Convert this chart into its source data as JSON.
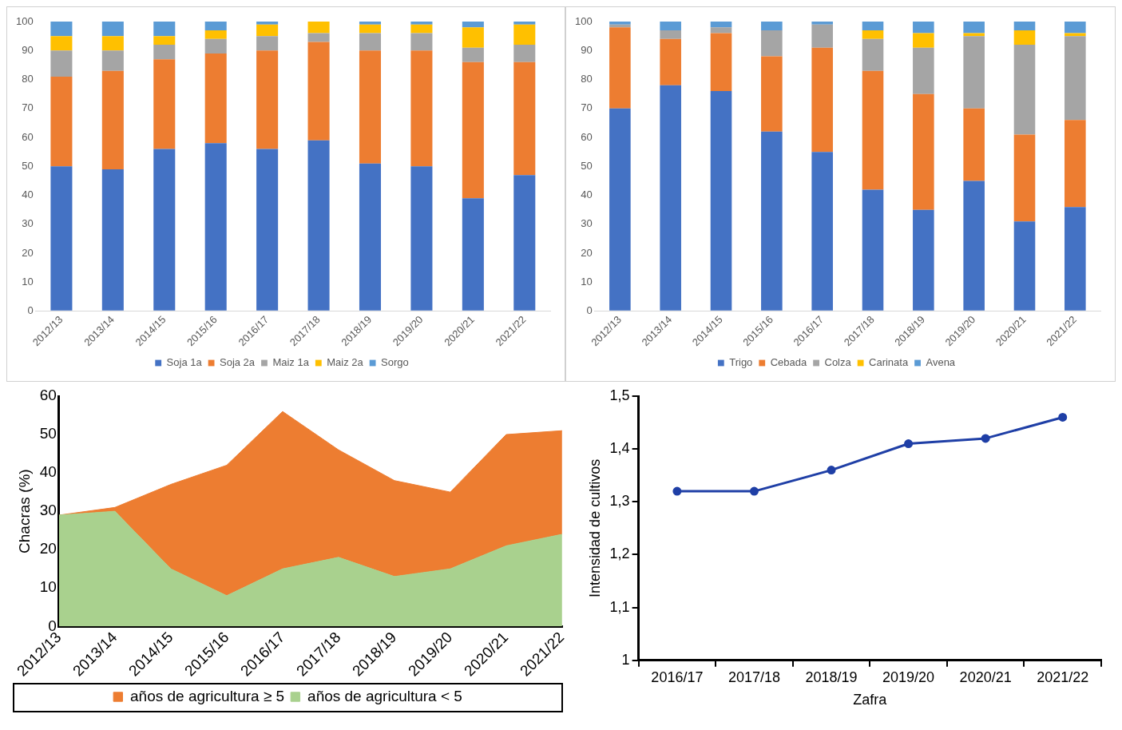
{
  "chart_data": [
    {
      "type": "bar",
      "stacked": true,
      "legend": "bottom",
      "ylim": [
        0,
        100
      ],
      "yticks": [
        0,
        10,
        20,
        30,
        40,
        50,
        60,
        70,
        80,
        90,
        100
      ],
      "categories": [
        "2012/13",
        "2013/14",
        "2014/15",
        "2015/16",
        "2016/17",
        "2017/18",
        "2018/19",
        "2019/20",
        "2020/21",
        "2021/22"
      ],
      "series": [
        {
          "name": "Soja 1a",
          "color": "#4472c4",
          "values": [
            50,
            49,
            56,
            58,
            56,
            59,
            51,
            50,
            39,
            47
          ]
        },
        {
          "name": "Soja 2a",
          "color": "#ed7d31",
          "values": [
            31,
            34,
            31,
            31,
            34,
            34,
            39,
            40,
            47,
            39
          ]
        },
        {
          "name": "Maiz 1a",
          "color": "#a5a5a5",
          "values": [
            9,
            7,
            5,
            5,
            5,
            3,
            6,
            6,
            5,
            6
          ]
        },
        {
          "name": "Maiz 2a",
          "color": "#ffc000",
          "values": [
            5,
            5,
            3,
            3,
            4,
            4,
            3,
            3,
            7,
            7
          ]
        },
        {
          "name": "Sorgo",
          "color": "#5b9bd5",
          "values": [
            5,
            5,
            5,
            3,
            1,
            0,
            1,
            1,
            2,
            1
          ]
        }
      ]
    },
    {
      "type": "bar",
      "stacked": true,
      "legend": "bottom",
      "ylim": [
        0,
        100
      ],
      "yticks": [
        0,
        10,
        20,
        30,
        40,
        50,
        60,
        70,
        80,
        90,
        100
      ],
      "categories": [
        "2012/13",
        "2013/14",
        "2014/15",
        "2015/16",
        "2016/17",
        "2017/18",
        "2018/19",
        "2019/20",
        "2020/21",
        "2021/22"
      ],
      "series": [
        {
          "name": "Trigo",
          "color": "#4472c4",
          "values": [
            70,
            78,
            76,
            62,
            55,
            42,
            35,
            45,
            31,
            36
          ]
        },
        {
          "name": "Cebada",
          "color": "#ed7d31",
          "values": [
            28,
            16,
            20,
            26,
            36,
            41,
            40,
            25,
            30,
            30
          ]
        },
        {
          "name": "Colza",
          "color": "#a5a5a5",
          "values": [
            1,
            3,
            2,
            9,
            8,
            11,
            16,
            25,
            31,
            29
          ]
        },
        {
          "name": "Carinata",
          "color": "#ffc000",
          "values": [
            0,
            0,
            0,
            0,
            0,
            3,
            5,
            1,
            5,
            1
          ]
        },
        {
          "name": "Avena",
          "color": "#5b9bd5",
          "values": [
            1,
            3,
            2,
            3,
            1,
            3,
            4,
            4,
            3,
            4
          ]
        }
      ]
    },
    {
      "type": "area",
      "stacked": true,
      "legend": "bottom",
      "ylabel": "Chacras (%)",
      "ylim": [
        0,
        60
      ],
      "yticks": [
        0,
        10,
        20,
        30,
        40,
        50,
        60
      ],
      "categories": [
        "2012/13",
        "2013/14",
        "2014/15",
        "2015/16",
        "2016/17",
        "2017/18",
        "2018/19",
        "2019/20",
        "2020/21",
        "2021/22"
      ],
      "series": [
        {
          "name": "años de agricultura < 5",
          "color": "#a9d18e",
          "values": [
            29,
            30,
            15,
            8,
            15,
            18,
            13,
            15,
            21,
            24
          ]
        },
        {
          "name": "años de agricultura ≥ 5",
          "color": "#ed7d31",
          "values": [
            0,
            1,
            22,
            34,
            41,
            28,
            25,
            20,
            29,
            27
          ]
        }
      ]
    },
    {
      "type": "line",
      "marker": "circle",
      "line_style": "solid",
      "xlabel": "Zafra",
      "ylabel": "Intensidad de cultivos",
      "ylim": [
        1,
        1.5
      ],
      "yticks": [
        1,
        {
          "value": 1.1,
          "label": "1,1"
        },
        {
          "value": 1.2,
          "label": "1,2"
        },
        {
          "value": 1.3,
          "label": "1,3"
        },
        {
          "value": 1.4,
          "label": "1,4"
        },
        {
          "value": 1.5,
          "label": "1,5"
        }
      ],
      "categories": [
        "2016/17",
        "2017/18",
        "2018/19",
        "2019/20",
        "2020/21",
        "2021/22"
      ],
      "series": [
        {
          "color": "#1f3fa6",
          "values": [
            1.32,
            1.32,
            1.36,
            1.41,
            1.42,
            1.46
          ]
        }
      ]
    }
  ]
}
